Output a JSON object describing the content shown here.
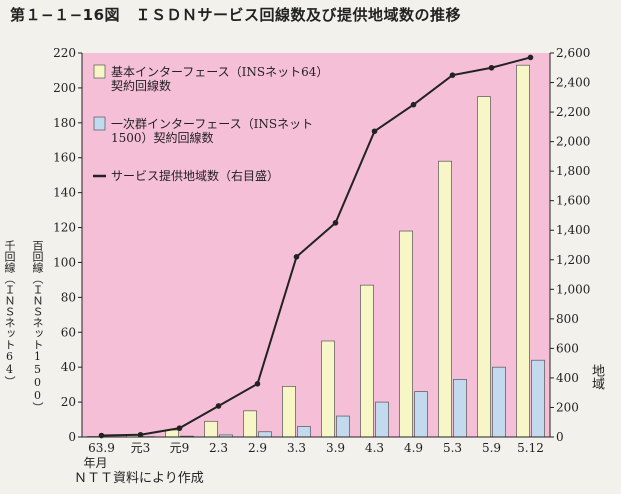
{
  "title": "第１−１−16図　ＩＳＤＮサービス回線数及び提供地域数の推移",
  "source_note": "ＮＴＴ資料により作成",
  "x_unit": "年月",
  "left_axis_label_1": "千回線（ＩＮＳネット64）",
  "left_axis_label_2": "百回線（ＩＮＳネット1500）",
  "right_axis_label": "地域",
  "colors": {
    "plot_bg": "#f6bfd8",
    "bar_basic": "#f7f6c6",
    "bar_primary": "#c3d9ee",
    "line": "#222222"
  },
  "chart_data": {
    "type": "bar",
    "categories": [
      "63.9",
      "元3",
      "元9",
      "2.3",
      "2.9",
      "3.3",
      "3.9",
      "4.3",
      "4.9",
      "5.3",
      "5.9",
      "5.12"
    ],
    "left_ylim": [
      0,
      220
    ],
    "left_yticks": [
      "0",
      "20",
      "40",
      "60",
      "80",
      "100",
      "120",
      "140",
      "160",
      "180",
      "200",
      "220"
    ],
    "right_ylim": [
      0,
      2600
    ],
    "right_yticks": [
      "0",
      "200",
      "400",
      "600",
      "800",
      "1,000",
      "1,200",
      "1,400",
      "1,600",
      "1,800",
      "2,000",
      "2,200",
      "2,400",
      "2,600"
    ],
    "series": [
      {
        "name": "基本インターフェース（INSネット64）契約回線数",
        "legend_lines": [
          "基本インターフェース（INSネット64）",
          "契約回線数"
        ],
        "kind": "bar",
        "axis": "left",
        "values": [
          0.3,
          1,
          4,
          9,
          15,
          29,
          55,
          87,
          118,
          158,
          195,
          213
        ]
      },
      {
        "name": "一次群インターフェース（INSネット1500）契約回線数",
        "legend_lines": [
          "一次群インターフェース（INSネット",
          "1500）契約回線数"
        ],
        "kind": "bar",
        "axis": "left",
        "values": [
          0,
          0.2,
          0.5,
          1.2,
          3,
          6,
          12,
          20,
          26,
          33,
          40,
          44
        ]
      },
      {
        "name": "サービス提供地域数（右目盛）",
        "legend_lines": [
          "サービス提供地域数（右目盛）"
        ],
        "kind": "line",
        "axis": "right",
        "values": [
          10,
          15,
          60,
          210,
          360,
          1220,
          1450,
          2070,
          2250,
          2450,
          2500,
          2570
        ]
      }
    ],
    "grid": false,
    "legend": "top-left"
  }
}
